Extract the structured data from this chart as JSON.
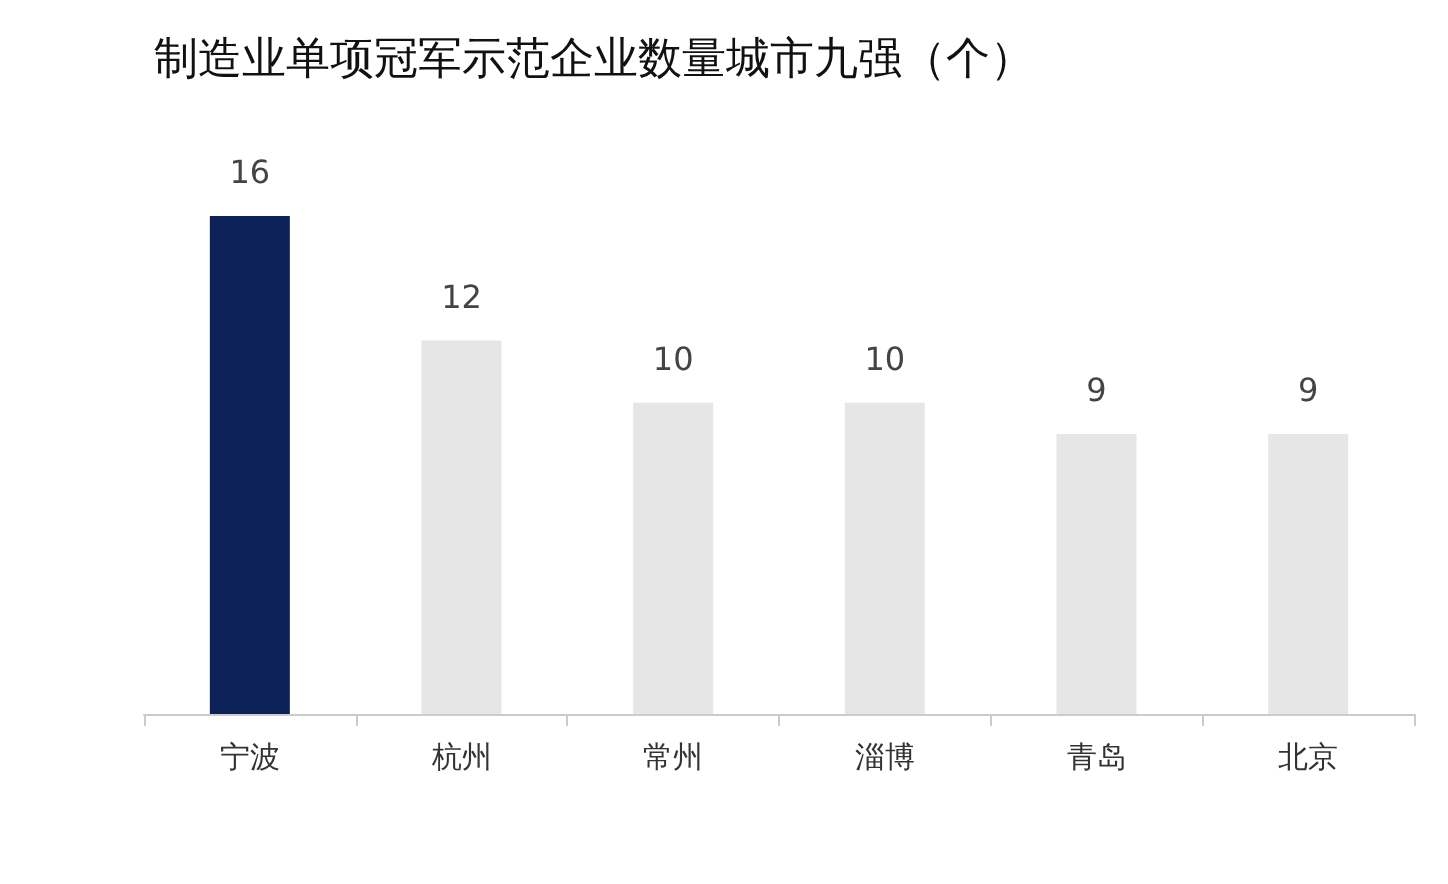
{
  "chart_data": {
    "type": "bar",
    "title": "制造业单项冠军示范企业数量城市九强（个）",
    "categories": [
      "宁波",
      "杭州",
      "常州",
      "淄博",
      "青岛",
      "北京"
    ],
    "values": [
      16,
      12,
      10,
      10,
      9,
      9
    ],
    "colors": [
      "#0b2158",
      "#e6e6e6",
      "#e6e6e6",
      "#e6e6e6",
      "#e6e6e6",
      "#e6e6e6"
    ],
    "data_labels": true,
    "tick_labels": "x",
    "grid": false
  }
}
